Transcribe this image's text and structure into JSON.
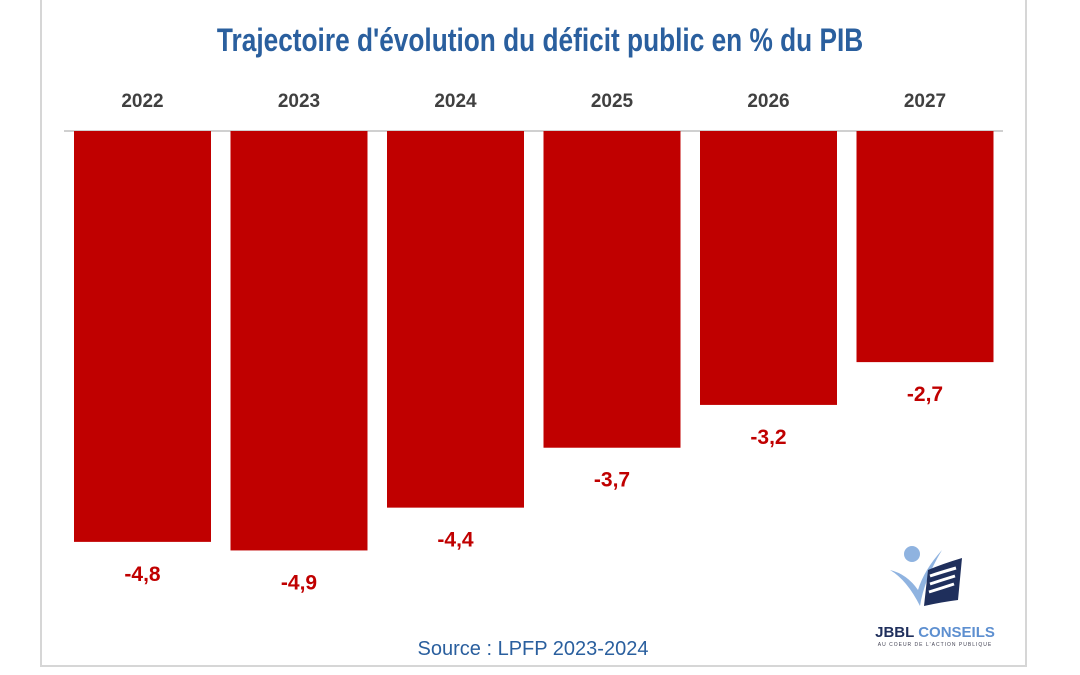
{
  "chart_data": {
    "type": "bar",
    "title": "Trajectoire d'évolution du déficit public en % du PIB",
    "categories": [
      "2022",
      "2023",
      "2024",
      "2025",
      "2026",
      "2027"
    ],
    "values": [
      -4.8,
      -4.9,
      -4.4,
      -3.7,
      -3.2,
      -2.7
    ],
    "value_labels": [
      "-4,8",
      "-4,9",
      "-4,4",
      "-3,7",
      "-3,2",
      "-2,7"
    ],
    "category_axis_position": "top",
    "ylim": [
      -5,
      0
    ],
    "grid": false,
    "legend": "none",
    "bar_color": "#c00000",
    "label_color": "#c00000",
    "title_color": "#2a5f9e"
  },
  "source": "Source : LPFP 2023-2024",
  "logo": {
    "name_part1": "JBBL",
    "name_part2": "CONSEILS",
    "tagline": "AU COEUR DE L'ACTION PUBLIQUE",
    "colors": {
      "dark": "#1f2f5c",
      "light": "#8fb3e0"
    }
  }
}
